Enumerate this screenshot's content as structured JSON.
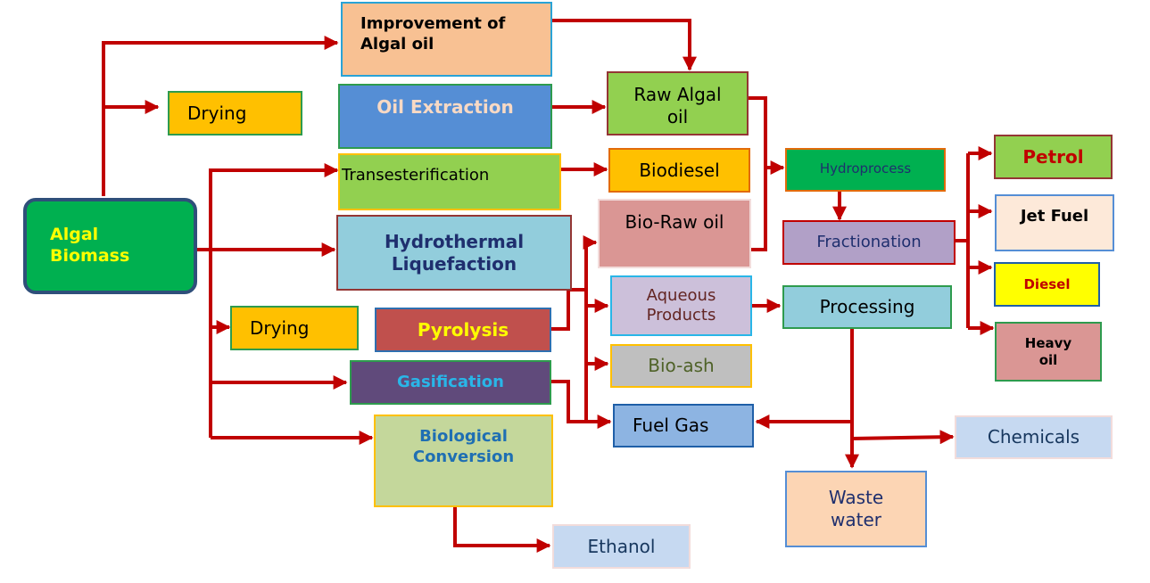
{
  "nodes": {
    "algal_biomass": {
      "label": "Algal\nBiomass",
      "fill": "#00b050",
      "border": "#2f4f7a",
      "text": "#ffff00"
    },
    "improvement": {
      "label": "Improvement of\nAlgal oil",
      "fill": "#f8c193",
      "border": "#29a3d6",
      "text": "#000000"
    },
    "drying_top": {
      "label": "Drying",
      "fill": "#ffc000",
      "border": "#2e9b4e",
      "text": "#000000"
    },
    "oil_extraction": {
      "label": "Oil Extraction",
      "fill": "#558ed5",
      "border": "#2e9b4e",
      "text": "#f8d9c4"
    },
    "transesterification": {
      "label": "Transesterification",
      "fill": "#92d050",
      "border": "#ffc000",
      "text": "#000000"
    },
    "htl": {
      "label": "Hydrothermal\nLiquefaction",
      "fill": "#92cddc",
      "border": "#943634",
      "text": "#1f2f6e"
    },
    "drying_bottom": {
      "label": "Drying",
      "fill": "#ffc000",
      "border": "#2e9b4e",
      "text": "#000000"
    },
    "pyrolysis": {
      "label": "Pyrolysis",
      "fill": "#c0504d",
      "border": "#2e6fb0",
      "text": "#ffff00"
    },
    "gasification": {
      "label": "Gasification",
      "fill": "#604a7b",
      "border": "#2e9b4e",
      "text": "#29b6e8"
    },
    "biological": {
      "label": "Biological\nConversion",
      "fill": "#c4d79b",
      "border": "#ffc000",
      "text": "#1f6fb3"
    },
    "ethanol": {
      "label": "Ethanol",
      "fill": "#c6d9f1",
      "border": "#f2dcdb",
      "text": "#17375e"
    },
    "raw_algal_oil": {
      "label": "Raw Algal\noil",
      "fill": "#92d050",
      "border": "#943634",
      "text": "#000000"
    },
    "biodiesel": {
      "label": "Biodiesel",
      "fill": "#ffc000",
      "border": "#e26b0a",
      "text": "#000000"
    },
    "bio_raw_oil": {
      "label": "Bio-Raw oil",
      "fill": "#da9694",
      "border": "#f2dcdb",
      "text": "#000000"
    },
    "aqueous": {
      "label": "Aqueous\nProducts",
      "fill": "#ccc0da",
      "border": "#29b6e8",
      "text": "#632523"
    },
    "bio_ash": {
      "label": "Bio-ash",
      "fill": "#bfbfbf",
      "border": "#ffc000",
      "text": "#4f6228"
    },
    "fuel_gas": {
      "label": "Fuel Gas",
      "fill": "#8db4e2",
      "border": "#1f5fa8",
      "text": "#000000"
    },
    "hydroprocess": {
      "label": "Hydroprocess",
      "fill": "#00b050",
      "border": "#e26b0a",
      "text": "#1f2f6e"
    },
    "fractionation": {
      "label": "Fractionation",
      "fill": "#b1a0c7",
      "border": "#c00000",
      "text": "#1f2f6e"
    },
    "processing": {
      "label": "Processing",
      "fill": "#92cddc",
      "border": "#2e9b4e",
      "text": "#000000"
    },
    "waste_water": {
      "label": "Waste\nwater",
      "fill": "#fcd5b4",
      "border": "#558ed5",
      "text": "#1f2f6e"
    },
    "chemicals": {
      "label": "Chemicals",
      "fill": "#c6d9f1",
      "border": "#f2dcdb",
      "text": "#17375e"
    },
    "petrol": {
      "label": "Petrol",
      "fill": "#92d050",
      "border": "#943634",
      "text": "#c00000"
    },
    "jet_fuel": {
      "label": "Jet Fuel",
      "fill": "#fde9d9",
      "border": "#558ed5",
      "text": "#000000"
    },
    "diesel": {
      "label": "Diesel",
      "fill": "#ffff00",
      "border": "#1f5fa8",
      "text": "#c00000"
    },
    "heavy_oil": {
      "label": "Heavy\noil",
      "fill": "#da9694",
      "border": "#2e9b4e",
      "text": "#000000"
    }
  },
  "arrow_color": "#c00000"
}
